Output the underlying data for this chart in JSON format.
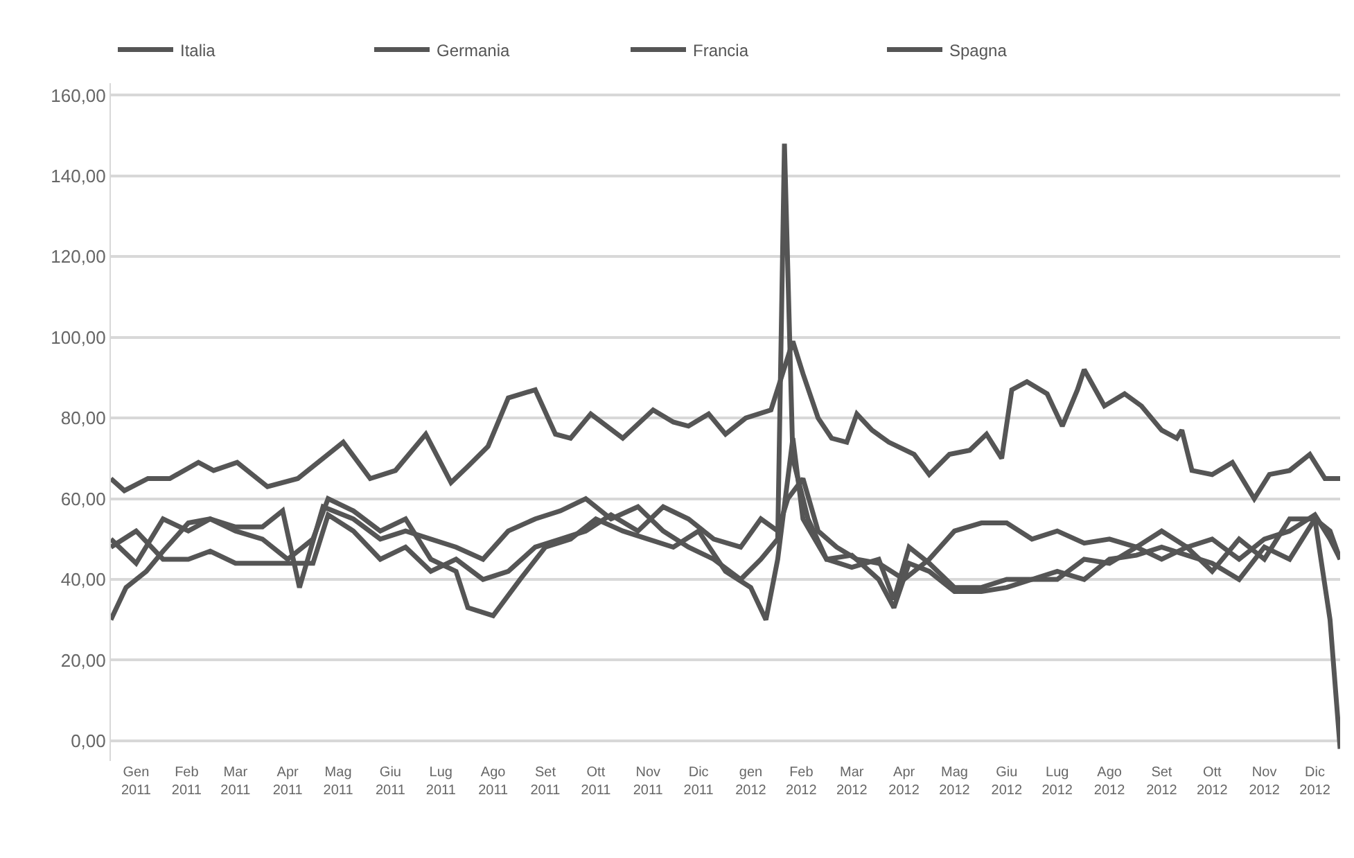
{
  "chart_data": {
    "type": "line",
    "legend": "top",
    "grid": "y",
    "marker": "none",
    "line_style": "solid",
    "xlim": [
      "2011-01-01",
      "2012-12-31"
    ],
    "ylim": [
      -5,
      163
    ],
    "yticks": [
      {
        "value": 0,
        "label": "0,00"
      },
      {
        "value": 20,
        "label": "20,00"
      },
      {
        "value": 40,
        "label": "40,00"
      },
      {
        "value": 60,
        "label": "60,00"
      },
      {
        "value": 80,
        "label": "80,00"
      },
      {
        "value": 100,
        "label": "100,00"
      },
      {
        "value": 120,
        "label": "120,00"
      },
      {
        "value": 140,
        "label": "140,00"
      },
      {
        "value": 160,
        "label": "160,00"
      }
    ],
    "xticks": [
      {
        "value": "2011-01-16",
        "label": "Gen 2011"
      },
      {
        "value": "2011-02-15",
        "label": "Feb 2011"
      },
      {
        "value": "2011-03-16",
        "label": "Mar 2011"
      },
      {
        "value": "2011-04-16",
        "label": "Apr 2011"
      },
      {
        "value": "2011-05-16",
        "label": "Mag 2011"
      },
      {
        "value": "2011-06-16",
        "label": "Giu 2011"
      },
      {
        "value": "2011-07-16",
        "label": "Lug 2011"
      },
      {
        "value": "2011-08-16",
        "label": "Ago 2011"
      },
      {
        "value": "2011-09-16",
        "label": "Set 2011"
      },
      {
        "value": "2011-10-16",
        "label": "Ott 2011"
      },
      {
        "value": "2011-11-16",
        "label": "Nov 2011"
      },
      {
        "value": "2011-12-16",
        "label": "Dic 2011"
      },
      {
        "value": "2012-01-16",
        "label": "gen 2012"
      },
      {
        "value": "2012-02-15",
        "label": "Feb 2012"
      },
      {
        "value": "2012-03-16",
        "label": "Mar 2012"
      },
      {
        "value": "2012-04-16",
        "label": "Apr 2012"
      },
      {
        "value": "2012-05-16",
        "label": "Mag 2012"
      },
      {
        "value": "2012-06-16",
        "label": "Giu 2012"
      },
      {
        "value": "2012-07-16",
        "label": "Lug 2012"
      },
      {
        "value": "2012-08-16",
        "label": "Ago 2012"
      },
      {
        "value": "2012-09-16",
        "label": "Set 2012"
      },
      {
        "value": "2012-10-16",
        "label": "Ott 2012"
      },
      {
        "value": "2012-11-16",
        "label": "Nov 2012"
      },
      {
        "value": "2012-12-16",
        "label": "Dic 2012"
      }
    ],
    "series": [
      {
        "name": "Italia",
        "color": "#555555",
        "x": [
          "2011-01-01",
          "2011-01-09",
          "2011-01-23",
          "2011-02-05",
          "2011-02-22",
          "2011-03-03",
          "2011-03-17",
          "2011-04-04",
          "2011-04-22",
          "2011-05-19",
          "2011-06-04",
          "2011-06-19",
          "2011-07-07",
          "2011-07-22",
          "2011-08-01",
          "2011-08-13",
          "2011-08-25",
          "2011-09-10",
          "2011-09-22",
          "2011-10-01",
          "2011-10-13",
          "2011-11-01",
          "2011-11-19",
          "2011-12-01",
          "2011-12-10",
          "2011-12-22",
          "2012-01-01",
          "2012-01-13",
          "2012-01-28",
          "2012-02-10",
          "2012-02-16",
          "2012-02-25",
          "2012-03-04",
          "2012-03-13",
          "2012-03-19",
          "2012-03-28",
          "2012-04-07",
          "2012-04-22",
          "2012-05-01",
          "2012-05-13",
          "2012-05-25",
          "2012-06-04",
          "2012-06-13",
          "2012-06-19",
          "2012-06-28",
          "2012-07-10",
          "2012-07-19",
          "2012-07-28",
          "2012-08-01",
          "2012-08-13",
          "2012-08-25",
          "2012-09-04",
          "2012-09-16",
          "2012-09-25",
          "2012-09-28",
          "2012-10-04",
          "2012-10-16",
          "2012-10-28",
          "2012-11-10",
          "2012-11-19",
          "2012-12-01",
          "2012-12-13",
          "2012-12-22",
          "2012-12-31"
        ],
        "values": [
          65,
          62,
          65,
          65,
          69,
          67,
          69,
          63,
          65,
          74,
          65,
          67,
          76,
          64,
          68,
          73,
          85,
          87,
          76,
          75,
          81,
          75,
          82,
          79,
          78,
          81,
          76,
          80,
          82,
          99,
          91,
          80,
          75,
          74,
          81,
          77,
          74,
          71,
          66,
          71,
          72,
          76,
          70,
          87,
          89,
          86,
          78,
          87,
          92,
          83,
          86,
          83,
          77,
          75,
          77,
          67,
          66,
          69,
          60,
          66,
          67,
          71,
          65,
          65
        ]
      },
      {
        "name": "Germania",
        "color": "#555555",
        "x": [
          "2011-01-01",
          "2011-01-16",
          "2011-02-01",
          "2011-02-16",
          "2011-03-01",
          "2011-03-16",
          "2011-04-01",
          "2011-04-13",
          "2011-04-23",
          "2011-05-07",
          "2011-05-25",
          "2011-06-10",
          "2011-06-25",
          "2011-07-10",
          "2011-07-25",
          "2011-08-10",
          "2011-08-25",
          "2011-09-10",
          "2011-09-25",
          "2011-10-10",
          "2011-10-25",
          "2011-11-10",
          "2011-11-25",
          "2011-12-10",
          "2011-12-25",
          "2012-01-10",
          "2012-01-22",
          "2012-02-01",
          "2012-02-05",
          "2012-02-10",
          "2012-02-19",
          "2012-03-01",
          "2012-03-16",
          "2012-04-01",
          "2012-04-10",
          "2012-04-19",
          "2012-05-01",
          "2012-05-16",
          "2012-06-01",
          "2012-06-16",
          "2012-07-01",
          "2012-07-16",
          "2012-08-01",
          "2012-08-16",
          "2012-09-01",
          "2012-09-16",
          "2012-10-01",
          "2012-10-16",
          "2012-11-01",
          "2012-11-16",
          "2012-12-01",
          "2012-12-16",
          "2012-12-25",
          "2012-12-31"
        ],
        "values": [
          50,
          44,
          55,
          52,
          55,
          53,
          53,
          57,
          38,
          58,
          55,
          50,
          52,
          50,
          48,
          45,
          52,
          55,
          57,
          60,
          55,
          58,
          52,
          48,
          45,
          40,
          45,
          50,
          148,
          70,
          55,
          45,
          43,
          45,
          35,
          48,
          44,
          38,
          38,
          40,
          40,
          40,
          45,
          44,
          48,
          45,
          48,
          42,
          50,
          45,
          55,
          55,
          30,
          -2
        ]
      },
      {
        "name": "Francia",
        "color": "#555555",
        "x": [
          "2011-01-01",
          "2011-01-16",
          "2011-02-01",
          "2011-02-16",
          "2011-03-01",
          "2011-03-16",
          "2011-04-01",
          "2011-04-16",
          "2011-05-01",
          "2011-05-10",
          "2011-05-25",
          "2011-06-10",
          "2011-06-25",
          "2011-07-10",
          "2011-07-25",
          "2011-08-10",
          "2011-08-25",
          "2011-09-10",
          "2011-09-25",
          "2011-10-10",
          "2011-10-25",
          "2011-11-10",
          "2011-11-25",
          "2011-12-10",
          "2011-12-25",
          "2012-01-10",
          "2012-01-22",
          "2012-02-01",
          "2012-02-07",
          "2012-02-16",
          "2012-02-25",
          "2012-03-07",
          "2012-03-19",
          "2012-04-01",
          "2012-04-16",
          "2012-05-01",
          "2012-05-16",
          "2012-06-01",
          "2012-06-16",
          "2012-07-01",
          "2012-07-16",
          "2012-08-01",
          "2012-08-16",
          "2012-09-01",
          "2012-09-16",
          "2012-10-01",
          "2012-10-16",
          "2012-11-01",
          "2012-11-16",
          "2012-12-01",
          "2012-12-16",
          "2012-12-25",
          "2012-12-31"
        ],
        "values": [
          48,
          52,
          45,
          45,
          47,
          44,
          44,
          44,
          44,
          56,
          52,
          45,
          48,
          42,
          45,
          40,
          42,
          48,
          50,
          52,
          56,
          52,
          58,
          55,
          50,
          48,
          55,
          52,
          60,
          65,
          52,
          48,
          45,
          44,
          40,
          45,
          52,
          54,
          54,
          50,
          52,
          49,
          50,
          48,
          52,
          48,
          50,
          45,
          50,
          52,
          56,
          50,
          45
        ]
      },
      {
        "name": "Spagna",
        "color": "#555555",
        "x": [
          "2011-01-01",
          "2011-01-10",
          "2011-01-22",
          "2011-02-01",
          "2011-02-16",
          "2011-03-01",
          "2011-03-16",
          "2011-04-01",
          "2011-04-16",
          "2011-05-01",
          "2011-05-10",
          "2011-05-25",
          "2011-06-10",
          "2011-06-25",
          "2011-07-10",
          "2011-07-25",
          "2011-08-01",
          "2011-08-16",
          "2011-09-01",
          "2011-09-16",
          "2011-10-01",
          "2011-10-16",
          "2011-11-01",
          "2011-11-16",
          "2011-12-01",
          "2011-12-16",
          "2012-01-01",
          "2012-01-16",
          "2012-01-25",
          "2012-02-01",
          "2012-02-10",
          "2012-02-16",
          "2012-03-01",
          "2012-03-16",
          "2012-04-01",
          "2012-04-10",
          "2012-04-19",
          "2012-05-01",
          "2012-05-16",
          "2012-06-01",
          "2012-06-16",
          "2012-07-01",
          "2012-07-16",
          "2012-08-01",
          "2012-08-16",
          "2012-09-01",
          "2012-09-16",
          "2012-10-01",
          "2012-10-16",
          "2012-11-01",
          "2012-11-16",
          "2012-12-01",
          "2012-12-16",
          "2012-12-25",
          "2012-12-31"
        ],
        "values": [
          30,
          38,
          42,
          47,
          54,
          55,
          52,
          50,
          45,
          50,
          60,
          57,
          52,
          55,
          45,
          42,
          33,
          31,
          40,
          48,
          50,
          55,
          52,
          50,
          48,
          52,
          42,
          38,
          30,
          45,
          75,
          55,
          45,
          46,
          40,
          33,
          44,
          42,
          37,
          37,
          38,
          40,
          42,
          40,
          45,
          46,
          48,
          46,
          44,
          40,
          48,
          45,
          55,
          52,
          45
        ]
      }
    ]
  }
}
